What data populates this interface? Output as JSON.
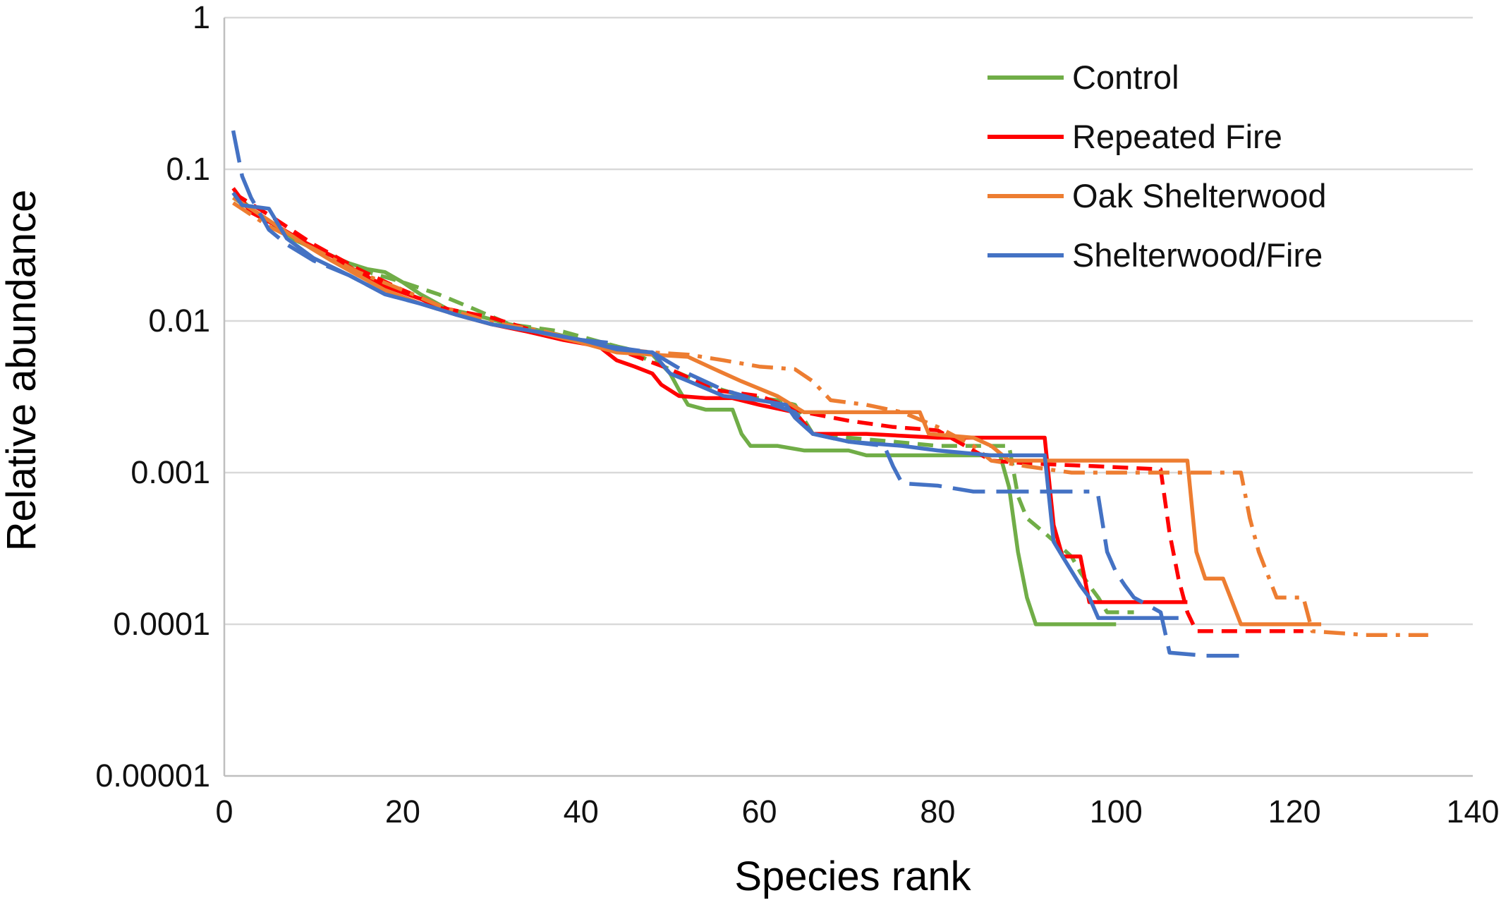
{
  "chart_data": {
    "type": "line",
    "title": "",
    "xlabel": "Species rank",
    "ylabel": "Relative abundance",
    "xlim": [
      0,
      140
    ],
    "ylim": [
      1e-05,
      1
    ],
    "yscale": "log",
    "grid": "horizontal",
    "legend_position": "top-right",
    "x_ticks": [
      "0",
      "20",
      "40",
      "60",
      "80",
      "100",
      "120",
      "140"
    ],
    "y_ticks": [
      "1",
      "0.1",
      "0.01",
      "0.001",
      "0.0001",
      "0.00001"
    ],
    "legend": [
      {
        "name": "Control",
        "color": "#70ad47"
      },
      {
        "name": "Repeated Fire",
        "color": "#ff0000"
      },
      {
        "name": "Oak Shelterwood",
        "color": "#ed7d31"
      },
      {
        "name": "Shelterwood/Fire",
        "color": "#4472c4"
      }
    ],
    "series": [
      {
        "treatment": "Control",
        "color": "#70ad47",
        "style": "solid",
        "points": [
          [
            1,
            0.07
          ],
          [
            3,
            0.055
          ],
          [
            6,
            0.042
          ],
          [
            8,
            0.034
          ],
          [
            10,
            0.03
          ],
          [
            12,
            0.027
          ],
          [
            14,
            0.024
          ],
          [
            16,
            0.022
          ],
          [
            18,
            0.021
          ],
          [
            20,
            0.018
          ],
          [
            22,
            0.015
          ],
          [
            25,
            0.012
          ],
          [
            28,
            0.011
          ],
          [
            32,
            0.0095
          ],
          [
            36,
            0.0085
          ],
          [
            40,
            0.0075
          ],
          [
            44,
            0.0068
          ],
          [
            48,
            0.006
          ],
          [
            50,
            0.0045
          ],
          [
            51,
            0.0035
          ],
          [
            52,
            0.0028
          ],
          [
            54,
            0.0026
          ],
          [
            57,
            0.0026
          ],
          [
            58,
            0.0018
          ],
          [
            59,
            0.0015
          ],
          [
            62,
            0.0015
          ],
          [
            65,
            0.0014
          ],
          [
            70,
            0.0014
          ],
          [
            72,
            0.0013
          ],
          [
            80,
            0.0013
          ],
          [
            87,
            0.0013
          ],
          [
            88,
            0.0008
          ],
          [
            89,
            0.0003
          ],
          [
            90,
            0.00015
          ],
          [
            91,
            0.0001
          ],
          [
            100,
            0.0001
          ]
        ]
      },
      {
        "treatment": "Control",
        "color": "#70ad47",
        "style": "dashed",
        "points": [
          [
            1,
            0.065
          ],
          [
            5,
            0.045
          ],
          [
            10,
            0.03
          ],
          [
            15,
            0.022
          ],
          [
            20,
            0.018
          ],
          [
            24,
            0.015
          ],
          [
            28,
            0.012
          ],
          [
            32,
            0.0095
          ],
          [
            38,
            0.0085
          ],
          [
            44,
            0.0068
          ],
          [
            50,
            0.0048
          ],
          [
            54,
            0.0038
          ],
          [
            58,
            0.0032
          ],
          [
            62,
            0.003
          ],
          [
            64,
            0.0028
          ],
          [
            66,
            0.0018
          ],
          [
            70,
            0.0017
          ],
          [
            75,
            0.0016
          ],
          [
            80,
            0.0015
          ],
          [
            86,
            0.0015
          ],
          [
            88,
            0.0015
          ],
          [
            89,
            0.0007
          ],
          [
            90,
            0.0005
          ],
          [
            92,
            0.0004
          ],
          [
            95,
            0.00028
          ],
          [
            96,
            0.00022
          ],
          [
            97,
            0.00018
          ],
          [
            98,
            0.00015
          ],
          [
            99,
            0.00012
          ],
          [
            102,
            0.00012
          ]
        ]
      },
      {
        "treatment": "Repeated Fire",
        "color": "#ff0000",
        "style": "solid",
        "points": [
          [
            1,
            0.075
          ],
          [
            3,
            0.052
          ],
          [
            6,
            0.042
          ],
          [
            9,
            0.033
          ],
          [
            12,
            0.027
          ],
          [
            15,
            0.021
          ],
          [
            18,
            0.017
          ],
          [
            22,
            0.014
          ],
          [
            26,
            0.011
          ],
          [
            30,
            0.0095
          ],
          [
            34,
            0.0085
          ],
          [
            38,
            0.0075
          ],
          [
            42,
            0.0068
          ],
          [
            44,
            0.0055
          ],
          [
            46,
            0.005
          ],
          [
            48,
            0.0045
          ],
          [
            49,
            0.0038
          ],
          [
            51,
            0.0032
          ],
          [
            54,
            0.0031
          ],
          [
            57,
            0.0031
          ],
          [
            60,
            0.0028
          ],
          [
            64,
            0.0025
          ],
          [
            66,
            0.0018
          ],
          [
            72,
            0.0018
          ],
          [
            80,
            0.0017
          ],
          [
            92,
            0.0017
          ],
          [
            93,
            0.00045
          ],
          [
            94,
            0.00028
          ],
          [
            96,
            0.00028
          ],
          [
            97,
            0.00014
          ],
          [
            98,
            0.00014
          ],
          [
            105,
            0.00014
          ],
          [
            108,
            0.00014
          ]
        ]
      },
      {
        "treatment": "Repeated Fire",
        "color": "#ff0000",
        "style": "dashed",
        "points": [
          [
            1,
            0.07
          ],
          [
            5,
            0.05
          ],
          [
            10,
            0.032
          ],
          [
            15,
            0.022
          ],
          [
            20,
            0.016
          ],
          [
            25,
            0.012
          ],
          [
            30,
            0.0105
          ],
          [
            35,
            0.0085
          ],
          [
            40,
            0.0072
          ],
          [
            45,
            0.0062
          ],
          [
            50,
            0.0048
          ],
          [
            55,
            0.0035
          ],
          [
            60,
            0.0032
          ],
          [
            65,
            0.0025
          ],
          [
            70,
            0.0022
          ],
          [
            75,
            0.002
          ],
          [
            80,
            0.0019
          ],
          [
            84,
            0.0014
          ],
          [
            86,
            0.0012
          ],
          [
            90,
            0.00115
          ],
          [
            98,
            0.0011
          ],
          [
            105,
            0.00105
          ],
          [
            106,
            0.0004
          ],
          [
            107,
            0.0002
          ],
          [
            108,
            0.00012
          ],
          [
            109,
            9e-05
          ],
          [
            116,
            9e-05
          ],
          [
            121,
            9e-05
          ]
        ]
      },
      {
        "treatment": "Oak Shelterwood",
        "color": "#ed7d31",
        "style": "solid",
        "points": [
          [
            1,
            0.065
          ],
          [
            3,
            0.055
          ],
          [
            6,
            0.042
          ],
          [
            9,
            0.032
          ],
          [
            12,
            0.025
          ],
          [
            15,
            0.02
          ],
          [
            18,
            0.016
          ],
          [
            22,
            0.013
          ],
          [
            26,
            0.011
          ],
          [
            30,
            0.0095
          ],
          [
            35,
            0.0085
          ],
          [
            40,
            0.0072
          ],
          [
            44,
            0.0062
          ],
          [
            48,
            0.006
          ],
          [
            52,
            0.0058
          ],
          [
            55,
            0.0048
          ],
          [
            58,
            0.004
          ],
          [
            62,
            0.0032
          ],
          [
            65,
            0.0025
          ],
          [
            70,
            0.0025
          ],
          [
            78,
            0.0025
          ],
          [
            79,
            0.0018
          ],
          [
            84,
            0.0017
          ],
          [
            86,
            0.0015
          ],
          [
            88,
            0.0012
          ],
          [
            100,
            0.0012
          ],
          [
            108,
            0.0012
          ],
          [
            109,
            0.0003
          ],
          [
            110,
            0.0002
          ],
          [
            112,
            0.0002
          ],
          [
            114,
            0.0001
          ],
          [
            123,
            0.0001
          ]
        ]
      },
      {
        "treatment": "Oak Shelterwood",
        "color": "#ed7d31",
        "style": "dashdot",
        "points": [
          [
            1,
            0.06
          ],
          [
            5,
            0.042
          ],
          [
            10,
            0.03
          ],
          [
            15,
            0.021
          ],
          [
            20,
            0.016
          ],
          [
            25,
            0.012
          ],
          [
            30,
            0.0098
          ],
          [
            36,
            0.0085
          ],
          [
            42,
            0.0068
          ],
          [
            48,
            0.0062
          ],
          [
            52,
            0.006
          ],
          [
            56,
            0.0055
          ],
          [
            60,
            0.005
          ],
          [
            64,
            0.0048
          ],
          [
            66,
            0.004
          ],
          [
            68,
            0.003
          ],
          [
            72,
            0.0028
          ],
          [
            76,
            0.0025
          ],
          [
            80,
            0.002
          ],
          [
            84,
            0.0015
          ],
          [
            86,
            0.0012
          ],
          [
            90,
            0.0011
          ],
          [
            95,
            0.001
          ],
          [
            105,
            0.001
          ],
          [
            114,
            0.001
          ],
          [
            115,
            0.0005
          ],
          [
            116,
            0.0003
          ],
          [
            118,
            0.00015
          ],
          [
            121,
            0.00015
          ],
          [
            122,
            9e-05
          ],
          [
            128,
            8.5e-05
          ],
          [
            135,
            8.5e-05
          ]
        ]
      },
      {
        "treatment": "Shelterwood/Fire",
        "color": "#4472c4",
        "style": "solid",
        "points": [
          [
            1,
            0.07
          ],
          [
            2,
            0.058
          ],
          [
            5,
            0.055
          ],
          [
            7,
            0.035
          ],
          [
            10,
            0.026
          ],
          [
            14,
            0.02
          ],
          [
            18,
            0.015
          ],
          [
            22,
            0.013
          ],
          [
            26,
            0.011
          ],
          [
            30,
            0.0095
          ],
          [
            35,
            0.0085
          ],
          [
            40,
            0.0075
          ],
          [
            44,
            0.0065
          ],
          [
            48,
            0.0062
          ],
          [
            50,
            0.0045
          ],
          [
            53,
            0.0038
          ],
          [
            56,
            0.0032
          ],
          [
            60,
            0.003
          ],
          [
            63,
            0.0028
          ],
          [
            64,
            0.0023
          ],
          [
            66,
            0.0018
          ],
          [
            70,
            0.0016
          ],
          [
            76,
            0.0015
          ],
          [
            80,
            0.0014
          ],
          [
            86,
            0.0013
          ],
          [
            92,
            0.0013
          ],
          [
            93,
            0.00035
          ],
          [
            94,
            0.00028
          ],
          [
            96,
            0.00018
          ],
          [
            97,
            0.00015
          ],
          [
            98,
            0.00011
          ],
          [
            107,
            0.00011
          ]
        ]
      },
      {
        "treatment": "Shelterwood/Fire",
        "color": "#4472c4",
        "style": "longdash",
        "points": [
          [
            1,
            0.18
          ],
          [
            2,
            0.09
          ],
          [
            3,
            0.065
          ],
          [
            5,
            0.04
          ],
          [
            7,
            0.032
          ],
          [
            10,
            0.025
          ],
          [
            14,
            0.02
          ],
          [
            18,
            0.015
          ],
          [
            22,
            0.013
          ],
          [
            26,
            0.011
          ],
          [
            30,
            0.0095
          ],
          [
            35,
            0.0085
          ],
          [
            40,
            0.0075
          ],
          [
            43,
            0.0072
          ]
        ]
      },
      {
        "treatment": "Shelterwood/Fire",
        "color": "#4472c4",
        "style": "longdash",
        "points": [
          [
            43,
            0.0068
          ],
          [
            48,
            0.0062
          ],
          [
            52,
            0.0045
          ],
          [
            56,
            0.0035
          ],
          [
            60,
            0.003
          ],
          [
            64,
            0.0025
          ],
          [
            66,
            0.0018
          ],
          [
            70,
            0.0016
          ],
          [
            74,
            0.0015
          ],
          [
            75,
            0.0011
          ],
          [
            76,
            0.00085
          ],
          [
            80,
            0.00082
          ],
          [
            84,
            0.00075
          ],
          [
            97,
            0.00075
          ]
        ]
      },
      {
        "treatment": "Shelterwood/Fire",
        "color": "#4472c4",
        "style": "longdash",
        "points": [
          [
            98,
            0.0007
          ],
          [
            99,
            0.0003
          ],
          [
            100,
            0.00022
          ],
          [
            101,
            0.00018
          ],
          [
            102,
            0.00015
          ],
          [
            105,
            0.00012
          ],
          [
            106,
            6.5e-05
          ],
          [
            110,
            6.2e-05
          ],
          [
            115,
            6.2e-05
          ]
        ]
      }
    ]
  }
}
